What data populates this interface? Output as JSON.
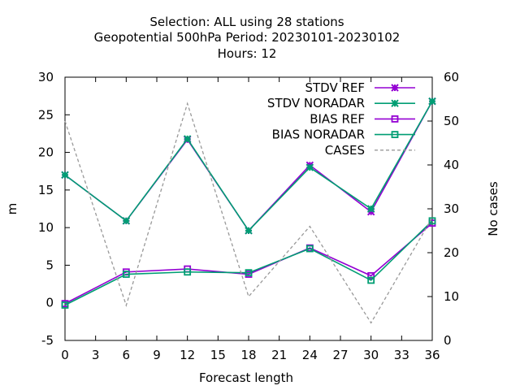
{
  "chart_data": {
    "type": "line",
    "title_lines": [
      "Selection: ALL using    28 stations",
      "Geopotential 500hPa   Period: 20230101-20230102",
      "Hours:  12"
    ],
    "xlabel": "Forecast length",
    "ylabel": "m",
    "y2label": "No cases",
    "xlim": [
      0,
      36
    ],
    "ylim": [
      -5,
      30
    ],
    "y2lim": [
      0,
      60
    ],
    "xticks": [
      0,
      3,
      6,
      9,
      12,
      15,
      18,
      21,
      24,
      27,
      30,
      33,
      36
    ],
    "yticks": [
      -5,
      0,
      5,
      10,
      15,
      20,
      25,
      30
    ],
    "y2ticks": [
      0,
      10,
      20,
      30,
      40,
      50,
      60
    ],
    "grid": false,
    "legend_position": "top-right",
    "x": [
      0,
      6,
      12,
      18,
      24,
      30,
      36
    ],
    "series": [
      {
        "name": "STDV REF",
        "axis": "y",
        "color": "#9400d3",
        "marker": "star",
        "dash": "solid",
        "values": [
          17.0,
          10.9,
          21.7,
          9.6,
          18.3,
          12.1,
          26.8
        ]
      },
      {
        "name": "STDV NORADAR",
        "axis": "y",
        "color": "#009e73",
        "marker": "star",
        "dash": "solid",
        "values": [
          17.0,
          10.9,
          21.8,
          9.6,
          18.0,
          12.5,
          26.8
        ]
      },
      {
        "name": "BIAS REF",
        "axis": "y",
        "color": "#9400d3",
        "marker": "square",
        "dash": "solid",
        "values": [
          -0.1,
          4.1,
          4.5,
          3.8,
          7.3,
          3.6,
          10.6
        ]
      },
      {
        "name": "BIAS NORADAR",
        "axis": "y",
        "color": "#009e73",
        "marker": "square",
        "dash": "solid",
        "values": [
          -0.3,
          3.8,
          4.1,
          4.0,
          7.2,
          3.0,
          10.9
        ]
      },
      {
        "name": "CASES",
        "axis": "y2",
        "color": "#999999",
        "marker": "none",
        "dash": "dashed",
        "values": [
          50,
          8,
          54,
          10,
          26,
          4,
          28
        ]
      }
    ]
  }
}
